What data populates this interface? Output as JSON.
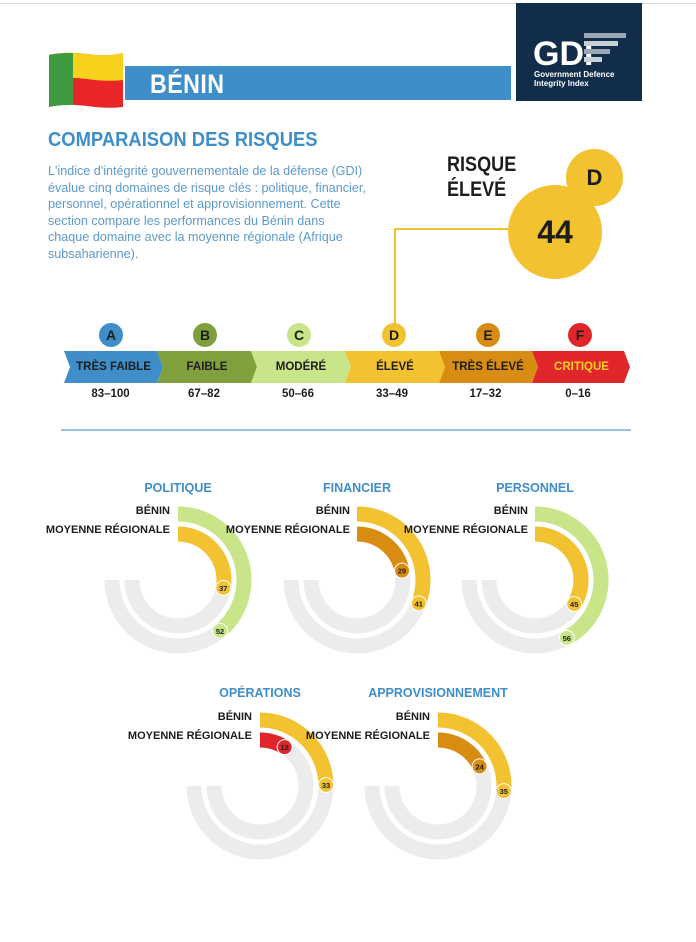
{
  "header": {
    "country": "BÉNIN",
    "logo_mark": "GDI",
    "logo_line1": "Government Defence",
    "logo_line2": "Integrity Index"
  },
  "section": {
    "title": "COMPARAISON DES RISQUES",
    "intro": "L'indice d'intégrité gouvernementale de la défense (GDI) évalue cinq domaines de risque clés : politique, financier, personnel, opérationnel et approvisionnement. Cette section compare les performances du Bénin dans chaque domaine avec la moyenne régionale (Afrique subsaharienne)."
  },
  "overall": {
    "risk_line1": "RISQUE",
    "risk_line2": "ÉLEVÉ",
    "score": "44",
    "grade": "D"
  },
  "scale": [
    {
      "grade": "A",
      "label": "TRÈS FAIBLE",
      "range": "83–100",
      "color": "#3f8ec9"
    },
    {
      "grade": "B",
      "label": "FAIBLE",
      "range": "67–82",
      "color": "#7fa03c"
    },
    {
      "grade": "C",
      "label": "MODÉRÉ",
      "range": "50–66",
      "color": "#c9e58a"
    },
    {
      "grade": "D",
      "label": "ÉLEVÉ",
      "range": "33–49",
      "color": "#f3c231"
    },
    {
      "grade": "E",
      "label": "TRÈS ÉLEVÉ",
      "range": "17–32",
      "color": "#d98c12"
    },
    {
      "grade": "F",
      "label": "CRITIQUE",
      "range": "0–16",
      "color": "#e0262b"
    }
  ],
  "legend": {
    "country": "BÉNIN",
    "regional": "MOYENNE RÉGIONALE"
  },
  "chart_data": {
    "type": "radial-bar",
    "max": 100,
    "series": [
      "BÉNIN",
      "MOYENNE RÉGIONALE"
    ],
    "charts": [
      {
        "title": "POLITIQUE",
        "country": 37,
        "regional": 52,
        "country_color": "#f3c231",
        "regional_color": "#c9e58a"
      },
      {
        "title": "FINANCIER",
        "country": 29,
        "regional": 41,
        "country_color": "#d98c12",
        "regional_color": "#f3c231"
      },
      {
        "title": "PERSONNEL",
        "country": 45,
        "regional": 56,
        "country_color": "#f3c231",
        "regional_color": "#c9e58a"
      },
      {
        "title": "OPÉRATIONS",
        "country": 12,
        "regional": 33,
        "country_color": "#e0262b",
        "regional_color": "#f3c231"
      },
      {
        "title": "APPROVISIONNEMENT",
        "country": 24,
        "regional": 35,
        "country_color": "#d98c12",
        "regional_color": "#f3c231"
      }
    ]
  }
}
